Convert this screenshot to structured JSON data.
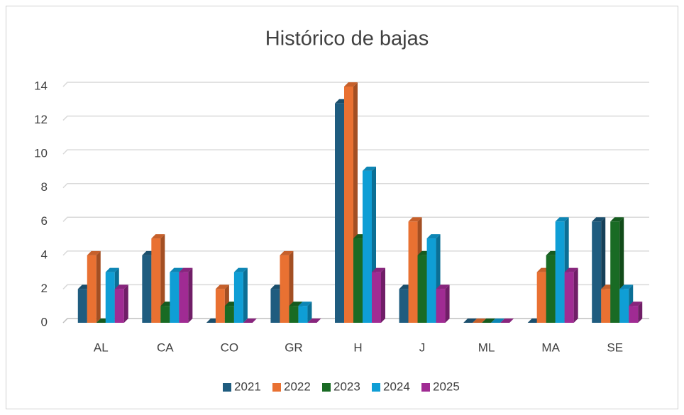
{
  "chart_data": {
    "type": "bar3d",
    "title": "Histórico de bajas",
    "categories": [
      "AL",
      "CA",
      "CO",
      "GR",
      "H",
      "J",
      "ML",
      "MA",
      "SE"
    ],
    "series": [
      {
        "name": "2021",
        "color": "#1f5c7f",
        "values": [
          2,
          4,
          0,
          2,
          13,
          2,
          0,
          0,
          6
        ]
      },
      {
        "name": "2022",
        "color": "#e97132",
        "values": [
          4,
          5,
          2,
          4,
          14,
          6,
          0,
          3,
          2
        ]
      },
      {
        "name": "2023",
        "color": "#196b24",
        "values": [
          0,
          1,
          1,
          1,
          5,
          4,
          0,
          4,
          6
        ]
      },
      {
        "name": "2024",
        "color": "#0f9ed5",
        "values": [
          3,
          3,
          3,
          1,
          9,
          5,
          0,
          6,
          2
        ]
      },
      {
        "name": "2025",
        "color": "#a02b93",
        "values": [
          2,
          3,
          0,
          0,
          3,
          2,
          0,
          3,
          1
        ]
      }
    ],
    "ylim": [
      0,
      14
    ],
    "yticks": [
      0,
      2,
      4,
      6,
      8,
      10,
      12,
      14
    ],
    "grid": true,
    "legend": "bottom"
  }
}
